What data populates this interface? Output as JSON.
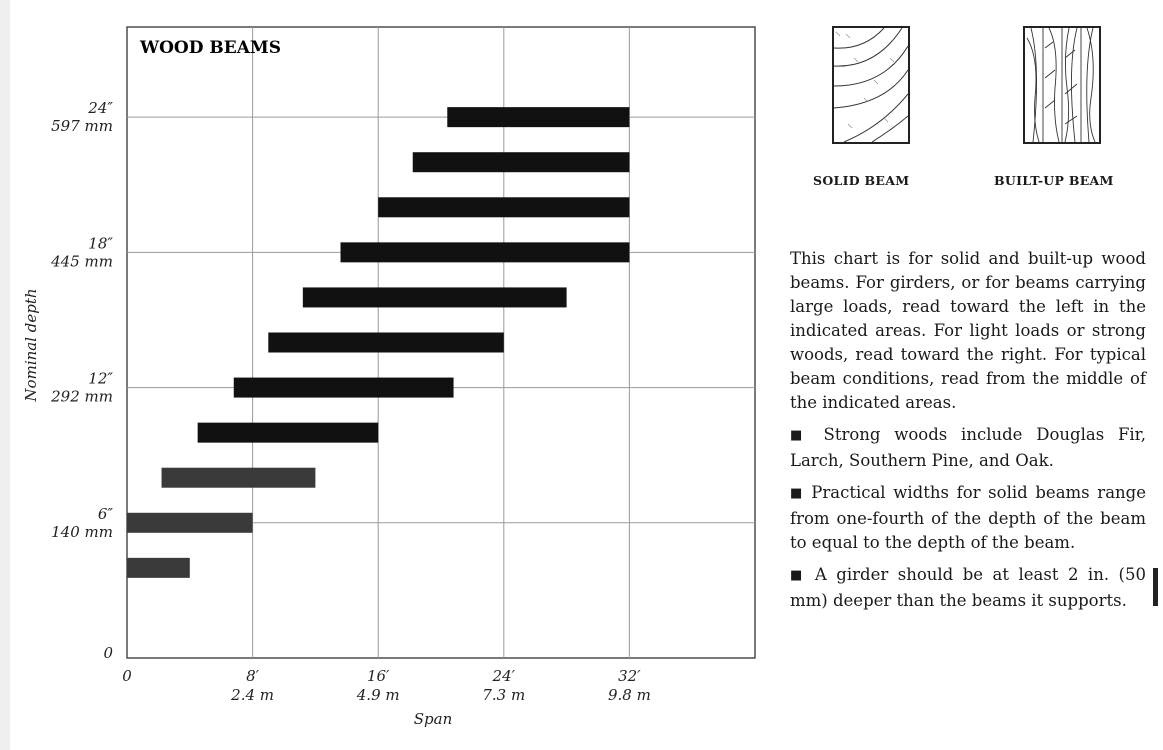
{
  "chart_data": {
    "type": "range-bar",
    "title": "WOOD BEAMS",
    "xlabel": "Span",
    "ylabel": "Nominal depth",
    "x_unit": "feet",
    "y_unit": "inches",
    "xlim": [
      0,
      40
    ],
    "ylim": [
      0,
      28
    ],
    "x_ticks": [
      {
        "value": 0,
        "label": "0",
        "metric": ""
      },
      {
        "value": 8,
        "label": "8′",
        "metric": "2.4 m"
      },
      {
        "value": 16,
        "label": "16′",
        "metric": "4.9 m"
      },
      {
        "value": 24,
        "label": "24′",
        "metric": "7.3 m"
      },
      {
        "value": 32,
        "label": "32′",
        "metric": "9.8 m"
      }
    ],
    "y_ticks": [
      {
        "value": 0,
        "label": "0",
        "metric": ""
      },
      {
        "value": 6,
        "label": "6″",
        "metric": "140 mm"
      },
      {
        "value": 12,
        "label": "12″",
        "metric": "292 mm"
      },
      {
        "value": 18,
        "label": "18″",
        "metric": "445 mm"
      },
      {
        "value": 24,
        "label": "24″",
        "metric": "597 mm"
      }
    ],
    "grid": true,
    "bars": [
      {
        "depth": 4,
        "span_min": 0,
        "span_max": 4
      },
      {
        "depth": 6,
        "span_min": 0,
        "span_max": 8
      },
      {
        "depth": 8,
        "span_min": 2.2,
        "span_max": 12
      },
      {
        "depth": 10,
        "span_min": 4.5,
        "span_max": 16
      },
      {
        "depth": 12,
        "span_min": 6.8,
        "span_max": 20.8
      },
      {
        "depth": 14,
        "span_min": 9,
        "span_max": 24
      },
      {
        "depth": 16,
        "span_min": 11.2,
        "span_max": 28
      },
      {
        "depth": 18,
        "span_min": 13.6,
        "span_max": 32
      },
      {
        "depth": 20,
        "span_min": 16,
        "span_max": 32
      },
      {
        "depth": 22,
        "span_min": 18.2,
        "span_max": 32
      },
      {
        "depth": 24,
        "span_min": 20.4,
        "span_max": 32
      }
    ]
  },
  "diagrams": {
    "solid_caption": "SOLID BEAM",
    "builtup_caption": "BUILT-UP BEAM"
  },
  "text": {
    "intro": "This chart is for solid and built-up wood beams. For girders, or for beams carrying large loads, read toward the left in the indicated areas. For light loads or strong woods, read toward the right. For typical beam conditions, read from the middle of the indicated areas.",
    "bullet1": "Strong woods include Douglas Fir, Larch, Southern Pine, and Oak.",
    "bullet2": "Practical widths for solid beams range from one-fourth of the depth of the beam to equal to the depth of the beam.",
    "bullet3": "A girder should be at least 2 in. (50 mm) deeper than the beams it supports."
  }
}
